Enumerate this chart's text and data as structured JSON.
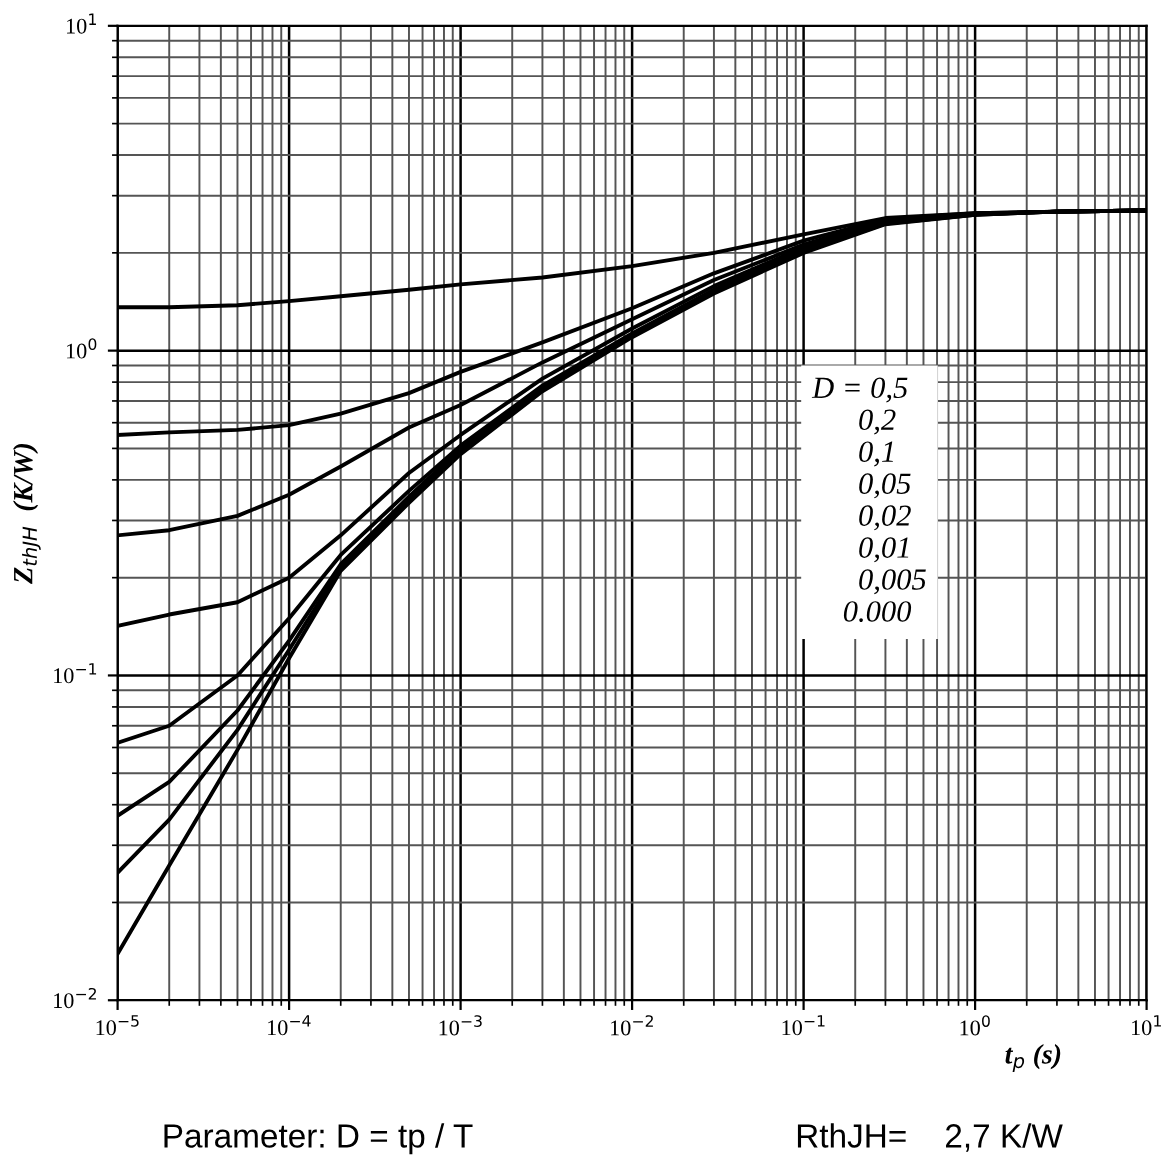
{
  "chart_data": {
    "type": "line",
    "ylabel": "Z$_{thJH}$  (K/W)",
    "xlabel": "t$_{p}$ (s)",
    "log": "xy",
    "grid": true,
    "marker": "none",
    "line_style": "solid",
    "xlim": [
      1e-05,
      10
    ],
    "ylim": [
      0.01,
      10
    ],
    "xticks": [
      {
        "value": 1e-05,
        "label": "10$^{−5}$"
      },
      {
        "value": 0.0001,
        "label": "10$^{−4}$"
      },
      {
        "value": 0.001,
        "label": "10$^{−3}$"
      },
      {
        "value": 0.01,
        "label": "10$^{−2}$"
      },
      {
        "value": 0.1,
        "label": "10$^{−1}$"
      },
      {
        "value": 1,
        "label": "10$^{0}$"
      },
      {
        "value": 10,
        "label": "10$^{1}$"
      }
    ],
    "yticks": [
      {
        "value": 0.01,
        "label": "10$^{−2}$"
      },
      {
        "value": 0.1,
        "label": "10$^{−1}$"
      },
      {
        "value": 1,
        "label": "10$^{0}$"
      },
      {
        "value": 10,
        "label": "10$^{1}$"
      }
    ],
    "x": [
      1e-05,
      2e-05,
      5e-05,
      0.0001,
      0.0002,
      0.0005,
      0.001,
      0.003,
      0.01,
      0.03,
      0.1,
      0.3,
      1,
      3,
      10
    ],
    "series": [
      {
        "color": "#000000",
        "values": [
          1.36,
          1.36,
          1.38,
          1.42,
          1.47,
          1.54,
          1.6,
          1.68,
          1.82,
          2.0,
          2.28,
          2.56,
          2.65,
          2.68,
          2.7
        ]
      },
      {
        "color": "#000000",
        "values": [
          0.55,
          0.56,
          0.57,
          0.59,
          0.64,
          0.74,
          0.86,
          1.06,
          1.35,
          1.73,
          2.18,
          2.54,
          2.65,
          2.68,
          2.7
        ]
      },
      {
        "color": "#000000",
        "values": [
          0.27,
          0.28,
          0.31,
          0.36,
          0.44,
          0.58,
          0.68,
          0.92,
          1.25,
          1.65,
          2.12,
          2.52,
          2.64,
          2.68,
          2.7
        ]
      },
      {
        "color": "#000000",
        "values": [
          0.142,
          0.154,
          0.168,
          0.2,
          0.27,
          0.42,
          0.55,
          0.82,
          1.17,
          1.58,
          2.08,
          2.5,
          2.64,
          2.68,
          2.7
        ]
      },
      {
        "color": "#000000",
        "values": [
          0.062,
          0.07,
          0.1,
          0.15,
          0.235,
          0.37,
          0.51,
          0.78,
          1.13,
          1.54,
          2.05,
          2.48,
          2.63,
          2.68,
          2.7
        ]
      },
      {
        "color": "#000000",
        "values": [
          0.037,
          0.047,
          0.078,
          0.128,
          0.22,
          0.355,
          0.5,
          0.77,
          1.12,
          1.52,
          2.03,
          2.47,
          2.63,
          2.68,
          2.7
        ]
      },
      {
        "color": "#000000",
        "values": [
          0.0247,
          0.036,
          0.068,
          0.12,
          0.215,
          0.35,
          0.49,
          0.76,
          1.11,
          1.51,
          2.02,
          2.46,
          2.62,
          2.68,
          2.7
        ]
      },
      {
        "color": "#000000",
        "values": [
          0.0139,
          0.026,
          0.059,
          0.113,
          0.21,
          0.34,
          0.48,
          0.75,
          1.1,
          1.5,
          2.0,
          2.45,
          2.62,
          2.68,
          2.7
        ]
      }
    ],
    "annotations": [
      "D = 0,5\n      0,2\n      0,1\n      0,05\n      0,02\n      0,01\n      0,005\n    0.000",
      "Parameter: D = tp / T",
      "RthJH=    2,7 K/W"
    ]
  }
}
